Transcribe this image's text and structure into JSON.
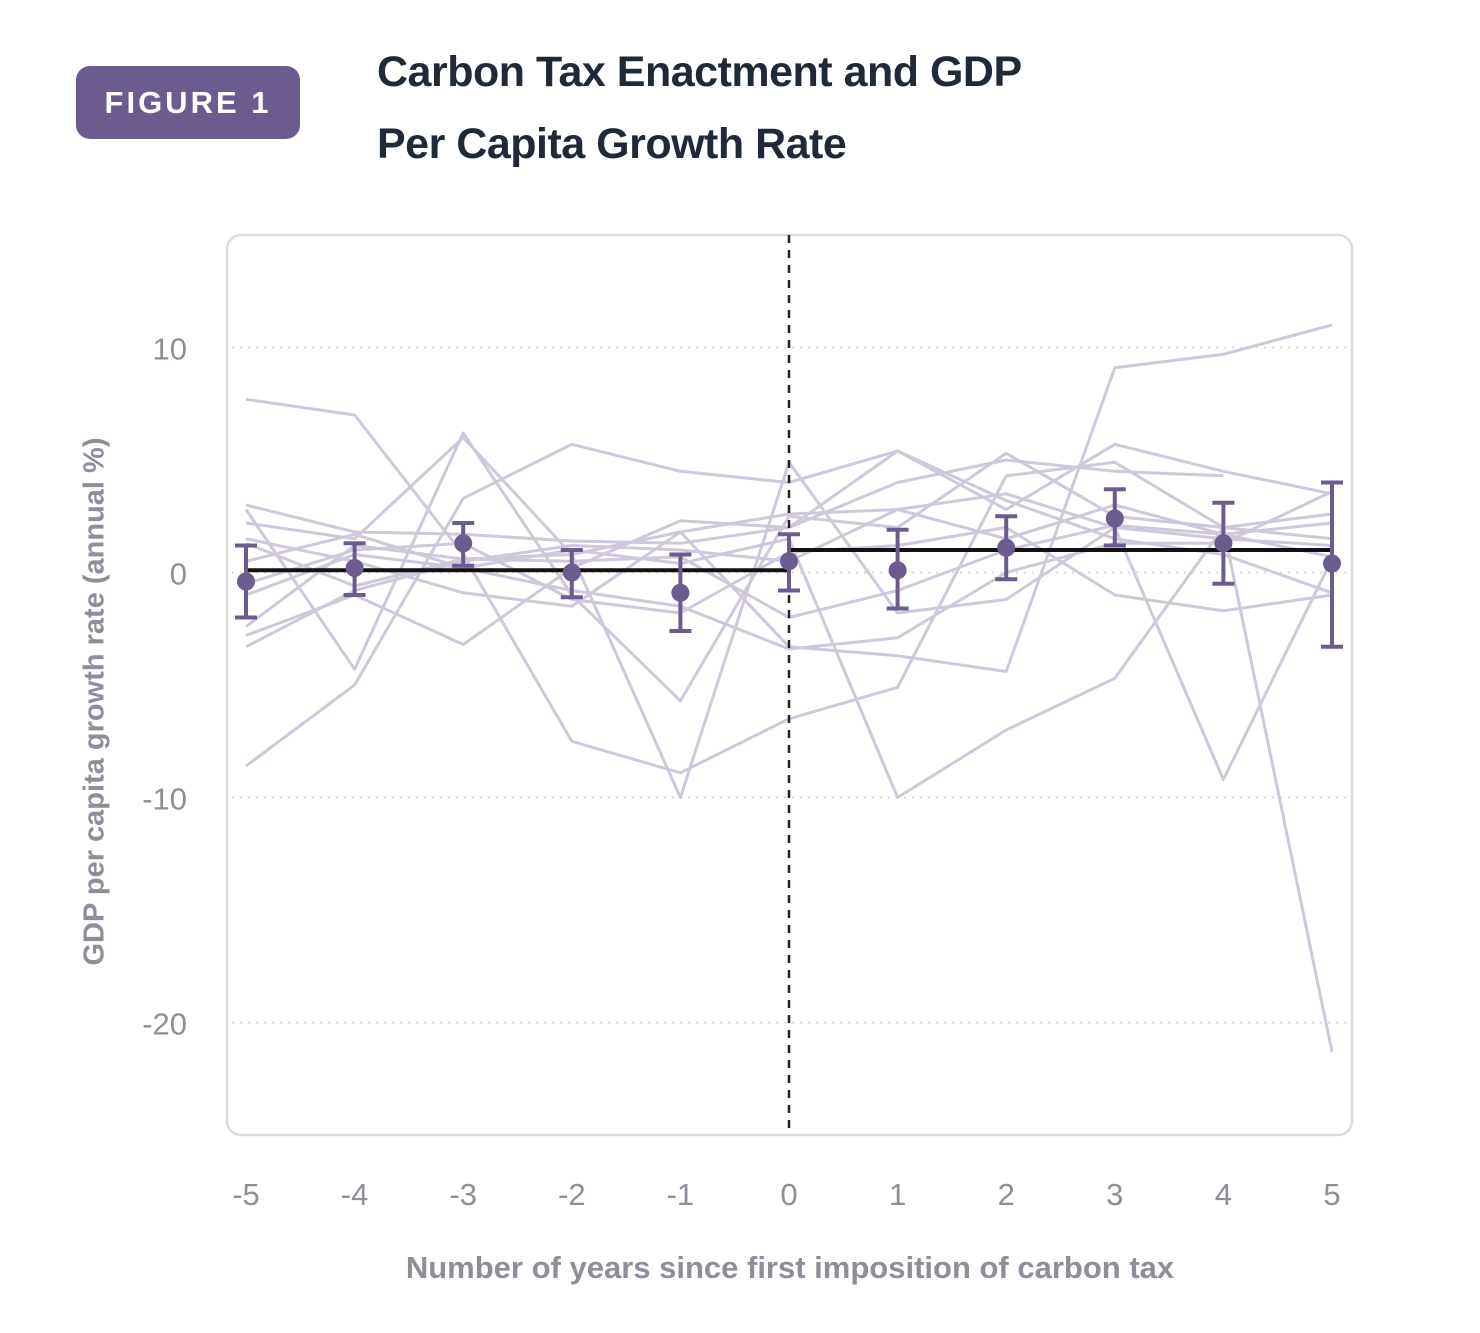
{
  "badge": {
    "label": "FIGURE 1"
  },
  "title": {
    "line1": "Carbon Tax Enactment and GDP",
    "line2": "Per Capita Growth Rate"
  },
  "colors": {
    "accent": "#6b5b8e",
    "country_line": "#cfc8dc",
    "mean_line": "#111111",
    "grid": "#d9d9d9",
    "tick": "#8f8d99"
  },
  "chart_data": {
    "type": "line",
    "xlabel": "Number of years since first imposition of carbon tax",
    "ylabel": "GDP per capita growth rate (annual %)",
    "x": [
      -5,
      -4,
      -3,
      -2,
      -1,
      0,
      1,
      2,
      3,
      4,
      5
    ],
    "xticks": [
      "-5",
      "-4",
      "-3",
      "-2",
      "-1",
      "0",
      "1",
      "2",
      "3",
      "4",
      "5"
    ],
    "yticks": [
      10,
      0,
      -10,
      -20
    ],
    "ytick_labels": [
      "10",
      "0",
      "-10",
      "-20"
    ],
    "ylim": [
      -25,
      15
    ],
    "grid": "horizontal dotted",
    "event_line_x": 0,
    "estimates": [
      {
        "x": -5,
        "y": -0.4,
        "lo": -2.0,
        "hi": 1.2
      },
      {
        "x": -4,
        "y": 0.2,
        "lo": -1.0,
        "hi": 1.3
      },
      {
        "x": -3,
        "y": 1.3,
        "lo": 0.3,
        "hi": 2.2
      },
      {
        "x": -2,
        "y": 0.0,
        "lo": -1.1,
        "hi": 1.0
      },
      {
        "x": -1,
        "y": -0.9,
        "lo": -2.6,
        "hi": 0.8
      },
      {
        "x": 0,
        "y": 0.5,
        "lo": -0.8,
        "hi": 1.7
      },
      {
        "x": 1,
        "y": 0.1,
        "lo": -1.6,
        "hi": 1.9
      },
      {
        "x": 2,
        "y": 1.1,
        "lo": -0.3,
        "hi": 2.5
      },
      {
        "x": 3,
        "y": 2.4,
        "lo": 1.2,
        "hi": 3.7
      },
      {
        "x": 4,
        "y": 1.3,
        "lo": -0.5,
        "hi": 3.1
      },
      {
        "x": 5,
        "y": 0.4,
        "lo": -3.3,
        "hi": 4.0
      }
    ],
    "mean_lines": [
      {
        "x": [
          -5,
          0
        ],
        "y": [
          0.1,
          0.1
        ]
      },
      {
        "x": [
          0,
          5
        ],
        "y": [
          1.0,
          1.0
        ]
      }
    ],
    "countries": [
      [
        7.7,
        7.0,
        0.8,
        -7.5,
        -8.9,
        -6.5,
        -5.1,
        4.3,
        4.9,
        2.0,
        1.5
      ],
      [
        2.2,
        1.5,
        6.0,
        0.8,
        -10.0,
        4.9,
        -1.8,
        -1.2,
        2.0,
        1.5,
        1.2
      ],
      [
        -8.6,
        -5.0,
        3.3,
        5.7,
        4.5,
        4.0,
        5.4,
        3.2,
        1.5,
        0.8,
        -0.9
      ],
      [
        3.0,
        1.8,
        1.7,
        1.4,
        1.3,
        2.0,
        5.4,
        2.8,
        5.7,
        4.5,
        3.5
      ],
      [
        2.8,
        -4.3,
        6.2,
        -1.0,
        -5.7,
        2.5,
        2.0,
        5.3,
        2.5,
        2.0,
        2.6
      ],
      [
        -2.8,
        -1.0,
        -3.2,
        0.2,
        2.3,
        2.0,
        4.0,
        5.0,
        4.5,
        4.3,
        null
      ],
      [
        1.5,
        0.5,
        -0.9,
        -1.5,
        1.8,
        -3.3,
        -3.7,
        -4.4,
        9.1,
        9.7,
        11.0
      ],
      [
        -1.0,
        0.8,
        0.2,
        1.0,
        0.4,
        1.5,
        -10.0,
        -7.0,
        -4.7,
        2.0,
        -21.3
      ],
      [
        -3.3,
        -0.8,
        0.5,
        1.2,
        1.0,
        0.5,
        2.8,
        3.5,
        2.0,
        -9.2,
        0.6
      ],
      [
        0.5,
        1.7,
        0.2,
        -0.8,
        -1.5,
        -3.4,
        -2.9,
        0.0,
        1.3,
        1.3,
        3.6
      ],
      [
        -0.5,
        1.0,
        1.3,
        -1.2,
        -1.8,
        0.9,
        1.2,
        2.0,
        -1.0,
        -1.7,
        -1.0
      ],
      [
        1.3,
        -0.6,
        0.6,
        0.8,
        1.8,
        2.6,
        2.8,
        1.5,
        3.0,
        1.7,
        2.2
      ],
      [
        -2.4,
        1.2,
        0.6,
        0.5,
        0.7,
        -2.0,
        -0.8,
        1.0,
        2.1,
        1.7,
        0.7
      ]
    ]
  }
}
